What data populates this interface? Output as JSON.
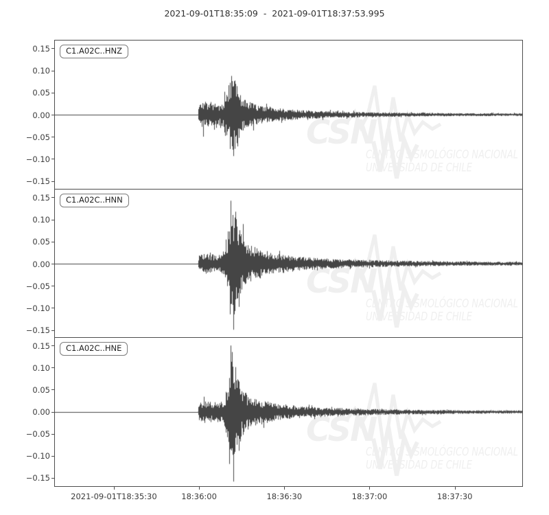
{
  "chart_data": {
    "type": "line",
    "subtype": "seismogram-3-channel",
    "title": "2021-09-01T18:35:09  -  2021-09-01T18:37:53.995",
    "start_time": "2021-09-01T18:35:09",
    "end_time": "2021-09-01T18:37:53.995",
    "duration_seconds": 164.995,
    "ylim": [
      -0.1684,
      0.1684
    ],
    "grid": false,
    "trace_color": "#454545",
    "axis_color": "#4c4c4c",
    "y_ticks": [
      {
        "label": "0.15",
        "value": 0.15
      },
      {
        "label": "0.10",
        "value": 0.1
      },
      {
        "label": "0.05",
        "value": 0.05
      },
      {
        "label": "0.00",
        "value": 0.0
      },
      {
        "label": "−0.05",
        "value": -0.05
      },
      {
        "label": "−0.10",
        "value": -0.1
      },
      {
        "label": "−0.15",
        "value": -0.15
      }
    ],
    "x_ticks": [
      {
        "label": "2021-09-01T18:35:30",
        "seconds": 21
      },
      {
        "label": "18:36:00",
        "seconds": 51
      },
      {
        "label": "18:36:30",
        "seconds": 81
      },
      {
        "label": "18:37:00",
        "seconds": 111
      },
      {
        "label": "18:37:30",
        "seconds": 141
      }
    ],
    "series": [
      {
        "name": "C1.A02C..HNZ",
        "seed": 7,
        "onset_seconds": 50.6,
        "peak_amplitude": 0.092,
        "min_amplitude": -0.094,
        "envelope": [
          [
            0,
            0.0006
          ],
          [
            50.4,
            0.0006
          ],
          [
            50.8,
            0.026
          ],
          [
            53,
            0.03
          ],
          [
            56,
            0.024
          ],
          [
            59.3,
            0.026
          ],
          [
            60.2,
            0.042
          ],
          [
            61.5,
            0.075
          ],
          [
            62.8,
            0.092
          ],
          [
            63.8,
            0.085
          ],
          [
            64.8,
            0.055
          ],
          [
            66,
            0.038
          ],
          [
            68,
            0.031
          ],
          [
            71,
            0.024
          ],
          [
            75,
            0.018
          ],
          [
            80,
            0.014
          ],
          [
            86,
            0.011
          ],
          [
            94,
            0.0085
          ],
          [
            104,
            0.0065
          ],
          [
            118,
            0.005
          ],
          [
            135,
            0.004
          ],
          [
            150,
            0.0033
          ],
          [
            164.995,
            0.003
          ]
        ],
        "spikes": [
          [
            52.3,
            -0.05
          ],
          [
            59.9,
            0.052
          ],
          [
            62.3,
            0.088
          ],
          [
            63.1,
            -0.094
          ],
          [
            63.8,
            0.07
          ],
          [
            64.5,
            -0.072
          ]
        ]
      },
      {
        "name": "C1.A02C..HNN",
        "seed": 21,
        "onset_seconds": 50.6,
        "peak_amplitude": 0.145,
        "min_amplitude": -0.15,
        "envelope": [
          [
            0,
            0.0006
          ],
          [
            50.4,
            0.0006
          ],
          [
            50.8,
            0.02
          ],
          [
            53,
            0.024
          ],
          [
            57,
            0.02
          ],
          [
            59.8,
            0.026
          ],
          [
            60.6,
            0.05
          ],
          [
            61.6,
            0.105
          ],
          [
            62.6,
            0.145
          ],
          [
            63.6,
            0.12
          ],
          [
            64.8,
            0.085
          ],
          [
            66.2,
            0.06
          ],
          [
            68,
            0.048
          ],
          [
            70.5,
            0.038
          ],
          [
            74,
            0.03
          ],
          [
            78,
            0.024
          ],
          [
            83,
            0.019
          ],
          [
            89,
            0.015
          ],
          [
            96,
            0.012
          ],
          [
            105,
            0.0095
          ],
          [
            116,
            0.0075
          ],
          [
            130,
            0.006
          ],
          [
            145,
            0.005
          ],
          [
            164.995,
            0.004
          ]
        ],
        "spikes": [
          [
            62.1,
            0.143
          ],
          [
            62.9,
            -0.15
          ],
          [
            61.7,
            -0.115
          ],
          [
            63.6,
            0.118
          ],
          [
            64.9,
            -0.098
          ],
          [
            66.5,
            0.09
          ]
        ]
      },
      {
        "name": "C1.A02C..HNE",
        "seed": 42,
        "onset_seconds": 50.6,
        "peak_amplitude": 0.151,
        "min_amplitude": -0.158,
        "envelope": [
          [
            0,
            0.0006
          ],
          [
            50.4,
            0.0006
          ],
          [
            50.8,
            0.024
          ],
          [
            52.5,
            0.028
          ],
          [
            56,
            0.022
          ],
          [
            59.5,
            0.024
          ],
          [
            60.5,
            0.055
          ],
          [
            61.6,
            0.11
          ],
          [
            62.4,
            0.15
          ],
          [
            63.4,
            0.115
          ],
          [
            64.6,
            0.08
          ],
          [
            66,
            0.055
          ],
          [
            67.8,
            0.042
          ],
          [
            70,
            0.033
          ],
          [
            73.5,
            0.026
          ],
          [
            78,
            0.02
          ],
          [
            84,
            0.015
          ],
          [
            92,
            0.011
          ],
          [
            102,
            0.0085
          ],
          [
            115,
            0.0065
          ],
          [
            130,
            0.005
          ],
          [
            148,
            0.004
          ],
          [
            164.995,
            0.0035
          ]
        ],
        "spikes": [
          [
            62.0,
            0.151
          ],
          [
            62.9,
            -0.158
          ],
          [
            61.6,
            -0.118
          ],
          [
            63.7,
            0.102
          ],
          [
            65.0,
            -0.088
          ]
        ]
      }
    ]
  },
  "watermark": {
    "abbrev": "CSN",
    "line1": "CENTRO SISMOLÓGICO NACIONAL",
    "line2": "UNIVERSIDAD DE CHILE",
    "color": "#efefef"
  }
}
